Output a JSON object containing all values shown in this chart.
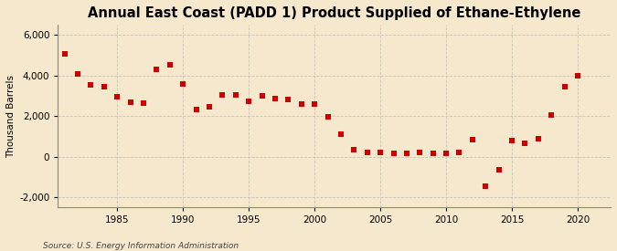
{
  "title": "Annual East Coast (PADD 1) Product Supplied of Ethane-Ethylene",
  "ylabel": "Thousand Barrels",
  "source": "Source: U.S. Energy Information Administration",
  "background_color": "#f5e8cc",
  "plot_bg_color": "#f5e8cc",
  "marker_color": "#cc0000",
  "years": [
    1981,
    1982,
    1983,
    1984,
    1985,
    1986,
    1987,
    1988,
    1989,
    1990,
    1991,
    1992,
    1993,
    1994,
    1995,
    1996,
    1997,
    1998,
    1999,
    2000,
    2001,
    2002,
    2003,
    2004,
    2005,
    2006,
    2007,
    2008,
    2009,
    2010,
    2011,
    2012,
    2013,
    2014,
    2015,
    2016,
    2017,
    2018,
    2019,
    2020
  ],
  "values": [
    5050,
    4100,
    3550,
    3450,
    2950,
    2700,
    2650,
    4300,
    4550,
    3600,
    2300,
    2450,
    3050,
    3050,
    2750,
    3000,
    2850,
    2800,
    2600,
    2600,
    1950,
    1100,
    330,
    200,
    200,
    150,
    150,
    200,
    150,
    150,
    200,
    850,
    -1450,
    -650,
    800,
    650,
    900,
    2050,
    3450,
    4000
  ],
  "ylim": [
    -2500,
    6500
  ],
  "yticks": [
    -2000,
    0,
    2000,
    4000,
    6000
  ],
  "xlim": [
    1980.5,
    2022.5
  ],
  "xticks": [
    1985,
    1990,
    1995,
    2000,
    2005,
    2010,
    2015,
    2020
  ],
  "grid_color": "#bbbbbb",
  "title_fontsize": 10.5,
  "label_fontsize": 7.5,
  "tick_fontsize": 7.5
}
